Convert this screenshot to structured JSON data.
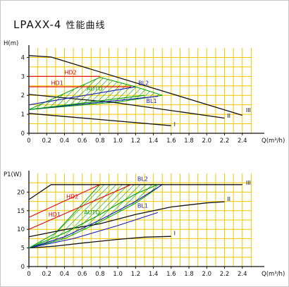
{
  "page": {
    "title_model": "LPAXX-4",
    "title_text": "性能曲线"
  },
  "colors": {
    "grid": "#f0c800",
    "axis": "#111111",
    "hd": "#e00000",
    "bl": "#1a1ab0",
    "auto": "#00a000",
    "speed": "#111111"
  },
  "chart_data": [
    {
      "type": "line",
      "title": "",
      "ylabel": "H(m)",
      "xlabel": "Q(m³/h)",
      "xlim": [
        0,
        2.6
      ],
      "ylim": [
        0,
        4.5
      ],
      "x_ticks": [
        "0",
        "0.2",
        "0.4",
        "0.6",
        "0.8",
        "1.0",
        "1.2",
        "1.4",
        "1.6",
        "1.8",
        "2.0",
        "2.2",
        "2.4"
      ],
      "y_ticks": [
        "0",
        "1",
        "2",
        "3",
        "4"
      ],
      "series": [
        {
          "name": "III",
          "role": "speed",
          "points": [
            [
              0,
              4.1
            ],
            [
              0.25,
              4.02
            ],
            [
              2.4,
              0.95
            ]
          ]
        },
        {
          "name": "II",
          "role": "speed",
          "points": [
            [
              0,
              2.05
            ],
            [
              1.0,
              1.6
            ],
            [
              2.2,
              0.8
            ]
          ]
        },
        {
          "name": "I",
          "role": "speed",
          "points": [
            [
              0,
              1.05
            ],
            [
              1.6,
              0.4
            ]
          ]
        },
        {
          "name": "HD2",
          "role": "hd",
          "points": [
            [
              0,
              3.0
            ],
            [
              0.8,
              3.0
            ]
          ]
        },
        {
          "name": "HD1",
          "role": "hd",
          "points": [
            [
              0,
              2.45
            ],
            [
              1.15,
              2.45
            ]
          ]
        },
        {
          "name": "BL2",
          "role": "bl",
          "points": [
            [
              0,
              1.5
            ],
            [
              1.2,
              2.45
            ]
          ]
        },
        {
          "name": "BL1",
          "role": "bl",
          "points": [
            [
              0,
              1.25
            ],
            [
              1.45,
              1.95
            ]
          ]
        },
        {
          "name": "AUTO",
          "role": "auto",
          "points": [
            [
              0,
              1.25
            ],
            [
              1.3,
              2.0
            ]
          ]
        }
      ],
      "hatched_region": [
        [
          0,
          1.25
        ],
        [
          0.8,
          2.95
        ],
        [
          1.2,
          2.45
        ],
        [
          1.5,
          2.0
        ],
        [
          1.0,
          1.65
        ],
        [
          0,
          1.25
        ]
      ]
    },
    {
      "type": "line",
      "title": "",
      "ylabel": "P1(W)",
      "xlabel": "Q(m³/h)",
      "xlim": [
        0,
        2.6
      ],
      "ylim": [
        0,
        25
      ],
      "x_ticks": [
        "0",
        "0.2",
        "0.4",
        "0.6",
        "0.8",
        "1.0",
        "1.2",
        "1.4",
        "1.6",
        "1.8",
        "2.0",
        "2.2",
        "2.4"
      ],
      "y_ticks": [
        "0",
        "5",
        "10",
        "15",
        "20"
      ],
      "series": [
        {
          "name": "III",
          "role": "speed",
          "points": [
            [
              0,
              18.0
            ],
            [
              0.25,
              22.0
            ],
            [
              2.4,
              22.0
            ]
          ]
        },
        {
          "name": "II",
          "role": "speed",
          "points": [
            [
              0,
              8.0
            ],
            [
              0.4,
              9.9
            ],
            [
              0.8,
              11.5
            ],
            [
              1.2,
              14.0
            ],
            [
              1.6,
              16.0
            ],
            [
              2.0,
              17.1
            ],
            [
              2.2,
              17.4
            ]
          ]
        },
        {
          "name": "I",
          "role": "speed",
          "points": [
            [
              0,
              5.0
            ],
            [
              0.3,
              5.5
            ],
            [
              0.6,
              6.3
            ],
            [
              1.0,
              7.3
            ],
            [
              1.3,
              7.9
            ],
            [
              1.6,
              8.1
            ]
          ]
        },
        {
          "name": "HD2",
          "role": "hd",
          "points": [
            [
              0,
              13.2
            ],
            [
              0.8,
              22.0
            ]
          ]
        },
        {
          "name": "HD1",
          "role": "hd",
          "points": [
            [
              0,
              10.0
            ],
            [
              1.15,
              22.0
            ]
          ]
        },
        {
          "name": "BL2",
          "role": "bl",
          "points": [
            [
              0,
              5.0
            ],
            [
              0.4,
              8.0
            ],
            [
              0.8,
              12.5
            ],
            [
              1.2,
              17.5
            ],
            [
              1.5,
              22.0
            ]
          ]
        },
        {
          "name": "BL1",
          "role": "bl",
          "points": [
            [
              0,
              5.0
            ],
            [
              0.5,
              7.5
            ],
            [
              1.0,
              11.0
            ],
            [
              1.45,
              14.5
            ]
          ]
        },
        {
          "name": "AUTO",
          "role": "auto",
          "points": [
            [
              0,
              5.0
            ],
            [
              0.4,
              9.0
            ],
            [
              0.8,
              14.0
            ],
            [
              1.2,
              19.5
            ],
            [
              1.45,
              22.0
            ]
          ]
        }
      ],
      "hatched_region": [
        [
          0,
          5.0
        ],
        [
          0.3,
          9.0
        ],
        [
          0.8,
          22.0
        ],
        [
          1.5,
          22.0
        ],
        [
          1.2,
          17.0
        ],
        [
          0.8,
          12.0
        ],
        [
          0.4,
          7.5
        ],
        [
          0,
          5.0
        ]
      ]
    }
  ],
  "curve_labels": [
    {
      "text": "HD2",
      "role": "hd",
      "chart": 0,
      "x": 0.4,
      "y": 3.1
    },
    {
      "text": "HD1",
      "role": "hd",
      "chart": 0,
      "x": 0.25,
      "y": 2.55
    },
    {
      "text": "AUTO",
      "role": "auto",
      "chart": 0,
      "x": 0.65,
      "y": 2.25
    },
    {
      "text": "BL2",
      "role": "bl",
      "chart": 0,
      "x": 1.23,
      "y": 2.55
    },
    {
      "text": "BL1",
      "role": "bl",
      "chart": 0,
      "x": 1.32,
      "y": 1.6
    },
    {
      "text": "III",
      "role": "speed",
      "chart": 0,
      "x": 2.44,
      "y": 1.12
    },
    {
      "text": "II",
      "role": "speed",
      "chart": 0,
      "x": 2.23,
      "y": 0.82
    },
    {
      "text": "I",
      "role": "speed",
      "chart": 0,
      "x": 1.63,
      "y": 0.38
    },
    {
      "text": "BL2",
      "role": "bl",
      "chart": 1,
      "x": 1.22,
      "y": 23.0
    },
    {
      "text": "HD2",
      "role": "hd",
      "chart": 1,
      "x": 0.42,
      "y": 18.3
    },
    {
      "text": "HD1",
      "role": "hd",
      "chart": 1,
      "x": 0.22,
      "y": 13.4
    },
    {
      "text": "AUTO",
      "role": "auto",
      "chart": 1,
      "x": 0.62,
      "y": 14.0
    },
    {
      "text": "BL1",
      "role": "bl",
      "chart": 1,
      "x": 1.22,
      "y": 15.8
    },
    {
      "text": "III",
      "role": "speed",
      "chart": 1,
      "x": 2.44,
      "y": 22.0
    },
    {
      "text": "II",
      "role": "speed",
      "chart": 1,
      "x": 2.23,
      "y": 17.6
    },
    {
      "text": "I",
      "role": "speed",
      "chart": 1,
      "x": 1.63,
      "y": 8.4
    }
  ]
}
